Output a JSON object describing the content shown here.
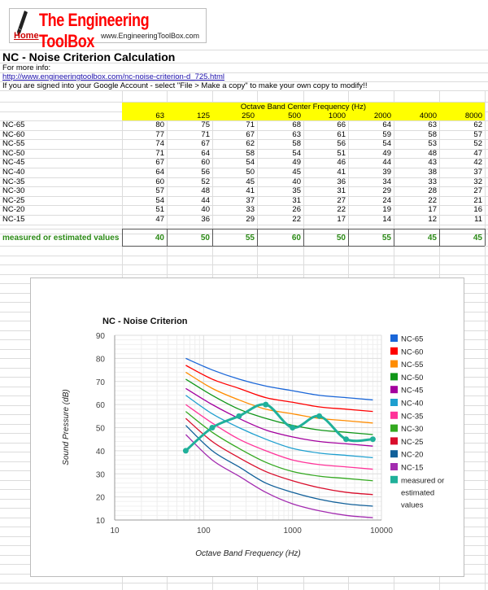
{
  "logo": {
    "title": "The Engineering ToolBox",
    "home_link": "Home",
    "url": "www.EngineeringToolBox.com"
  },
  "sheet": {
    "title": "NC - Noise Criterion Calculation",
    "info_label": "For more info:",
    "info_link": "http://www.engineeringtoolbox.com/nc-noise-criterion-d_725.html",
    "copy_note": "If you are signed into your Google Account - select \"File > Make a copy\" to make your own copy to modify!!",
    "header_group": "Octave Band Center Frequency (Hz)",
    "frequencies": [
      "63",
      "125",
      "250",
      "500",
      "1000",
      "2000",
      "4000",
      "8000"
    ],
    "rows": [
      {
        "label": "NC-65",
        "values": [
          "80",
          "75",
          "71",
          "68",
          "66",
          "64",
          "63",
          "62"
        ]
      },
      {
        "label": "NC-60",
        "values": [
          "77",
          "71",
          "67",
          "63",
          "61",
          "59",
          "58",
          "57"
        ]
      },
      {
        "label": "NC-55",
        "values": [
          "74",
          "67",
          "62",
          "58",
          "56",
          "54",
          "53",
          "52"
        ]
      },
      {
        "label": "NC-50",
        "values": [
          "71",
          "64",
          "58",
          "54",
          "51",
          "49",
          "48",
          "47"
        ]
      },
      {
        "label": "NC-45",
        "values": [
          "67",
          "60",
          "54",
          "49",
          "46",
          "44",
          "43",
          "42"
        ]
      },
      {
        "label": "NC-40",
        "values": [
          "64",
          "56",
          "50",
          "45",
          "41",
          "39",
          "38",
          "37"
        ]
      },
      {
        "label": "NC-35",
        "values": [
          "60",
          "52",
          "45",
          "40",
          "36",
          "34",
          "33",
          "32"
        ]
      },
      {
        "label": "NC-30",
        "values": [
          "57",
          "48",
          "41",
          "35",
          "31",
          "29",
          "28",
          "27"
        ]
      },
      {
        "label": "NC-25",
        "values": [
          "54",
          "44",
          "37",
          "31",
          "27",
          "24",
          "22",
          "21"
        ]
      },
      {
        "label": "NC-20",
        "values": [
          "51",
          "40",
          "33",
          "26",
          "22",
          "19",
          "17",
          "16"
        ]
      },
      {
        "label": "NC-15",
        "values": [
          "47",
          "36",
          "29",
          "22",
          "17",
          "14",
          "12",
          "11"
        ]
      }
    ],
    "measured": {
      "label": "measured or estimated values",
      "values": [
        "40",
        "50",
        "55",
        "60",
        "50",
        "55",
        "45",
        "45"
      ]
    },
    "colors": {
      "header_fill": "#ffff00",
      "measured_text": "#2b8a16",
      "link": "#1a0dab"
    }
  },
  "chart_data": {
    "type": "line",
    "title": "NC - Noise Criterion",
    "xlabel": "Octave Band Frequency (Hz)",
    "ylabel": "Sound Pressure (dB)",
    "x_scale": "log",
    "xlim": [
      10,
      10000
    ],
    "ylim": [
      10,
      90
    ],
    "x_ticks": [
      "10",
      "100",
      "1000",
      "10000"
    ],
    "y_ticks": [
      "10",
      "20",
      "30",
      "40",
      "50",
      "60",
      "70",
      "80",
      "90"
    ],
    "grid": true,
    "legend_position": "right",
    "x": [
      63,
      125,
      250,
      500,
      1000,
      2000,
      4000,
      8000
    ],
    "series": [
      {
        "name": "NC-65",
        "color": "#1a66d8",
        "values": [
          80,
          75,
          71,
          68,
          66,
          64,
          63,
          62
        ]
      },
      {
        "name": "NC-60",
        "color": "#ff0000",
        "values": [
          77,
          71,
          67,
          63,
          61,
          59,
          58,
          57
        ]
      },
      {
        "name": "NC-55",
        "color": "#ff8c00",
        "values": [
          74,
          67,
          62,
          58,
          56,
          54,
          53,
          52
        ]
      },
      {
        "name": "NC-50",
        "color": "#109618",
        "values": [
          71,
          64,
          58,
          54,
          51,
          49,
          48,
          47
        ]
      },
      {
        "name": "NC-45",
        "color": "#a3009e",
        "values": [
          67,
          60,
          54,
          49,
          46,
          44,
          43,
          42
        ]
      },
      {
        "name": "NC-40",
        "color": "#1e9fcf",
        "values": [
          64,
          56,
          50,
          45,
          41,
          39,
          38,
          37
        ]
      },
      {
        "name": "NC-35",
        "color": "#ff3399",
        "values": [
          60,
          52,
          45,
          40,
          36,
          34,
          33,
          32
        ]
      },
      {
        "name": "NC-30",
        "color": "#33a81f",
        "values": [
          57,
          48,
          41,
          35,
          31,
          29,
          28,
          27
        ]
      },
      {
        "name": "NC-25",
        "color": "#d90d2b",
        "values": [
          54,
          44,
          37,
          31,
          27,
          24,
          22,
          21
        ]
      },
      {
        "name": "NC-20",
        "color": "#11609a",
        "values": [
          51,
          40,
          33,
          26,
          22,
          19,
          17,
          16
        ]
      },
      {
        "name": "NC-15",
        "color": "#a32cb0",
        "values": [
          47,
          36,
          29,
          22,
          17,
          14,
          12,
          11
        ]
      },
      {
        "name": "measured or estimated values",
        "color": "#20b09a",
        "values": [
          40,
          50,
          55,
          60,
          50,
          55,
          45,
          45
        ],
        "markers": true
      }
    ],
    "legend_lines": [
      [
        "NC-65"
      ],
      [
        "NC-60"
      ],
      [
        "NC-55"
      ],
      [
        "NC-50"
      ],
      [
        "NC-45"
      ],
      [
        "NC-40"
      ],
      [
        "NC-35"
      ],
      [
        "NC-30"
      ],
      [
        "NC-25"
      ],
      [
        "NC-20"
      ],
      [
        "NC-15"
      ],
      [
        "measured or",
        "estimated",
        "values"
      ]
    ]
  }
}
